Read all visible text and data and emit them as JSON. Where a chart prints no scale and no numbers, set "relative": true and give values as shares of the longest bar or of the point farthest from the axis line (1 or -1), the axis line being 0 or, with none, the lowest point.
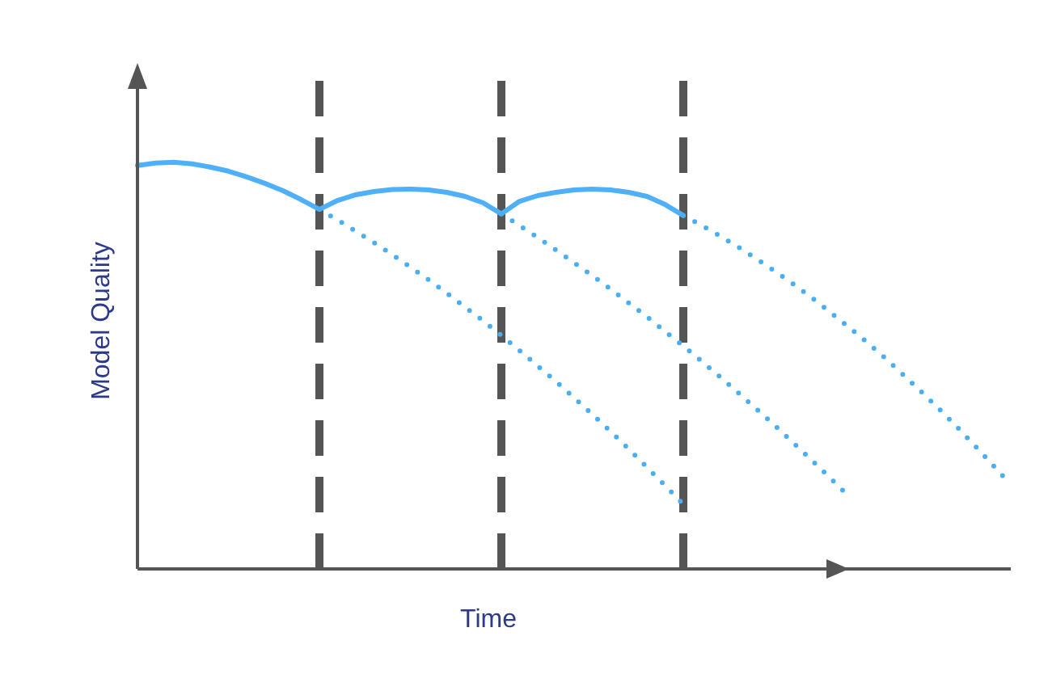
{
  "chart_data": {
    "type": "line",
    "relative": true,
    "xlabel": "Time",
    "ylabel": "Model Quality",
    "grid": "x",
    "legend": false,
    "marker": "none",
    "categories": [
      null,
      null,
      null,
      null,
      null,
      null,
      null,
      null,
      null,
      null,
      null,
      null,
      null,
      null,
      null,
      null,
      null,
      null,
      null,
      null,
      null,
      null,
      null,
      null,
      null,
      null,
      null,
      null,
      null,
      null,
      null,
      null,
      null,
      null,
      null,
      null,
      null,
      null,
      null,
      null,
      null,
      null,
      null,
      null,
      null,
      null,
      null,
      null,
      null
    ],
    "series": [
      {
        "color": "#4fb0f7",
        "line_style": "solid",
        "values": [
          0.992,
          0.998,
          1.0,
          0.996,
          0.988,
          0.978,
          0.964,
          0.948,
          0.93,
          0.908,
          0.884,
          0.906,
          0.92,
          0.928,
          0.933,
          0.934,
          0.932,
          0.926,
          0.916,
          0.9,
          0.873,
          0.904,
          0.918,
          0.926,
          0.932,
          0.934,
          0.932,
          0.926,
          0.916,
          0.896,
          0.869,
          null,
          null,
          null,
          null,
          null,
          null,
          null,
          null,
          null,
          null,
          null,
          null,
          null,
          null,
          null,
          null,
          null,
          null
        ]
      },
      {
        "color": "#4aaef5",
        "line_style": "dotted",
        "values": [
          null,
          null,
          null,
          null,
          null,
          null,
          null,
          null,
          null,
          null,
          0.884,
          0.858,
          0.83,
          0.802,
          0.773,
          0.742,
          0.711,
          0.678,
          0.644,
          0.61,
          0.574,
          0.537,
          0.499,
          0.461,
          0.421,
          0.38,
          0.338,
          0.295,
          0.25,
          0.205,
          0.159,
          null,
          null,
          null,
          null,
          null,
          null,
          null,
          null,
          null,
          null,
          null,
          null,
          null,
          null,
          null,
          null,
          null,
          null
        ]
      },
      {
        "color": "#4aaef5",
        "line_style": "dotted",
        "values": [
          null,
          null,
          null,
          null,
          null,
          null,
          null,
          null,
          null,
          null,
          null,
          null,
          null,
          null,
          null,
          null,
          null,
          null,
          null,
          null,
          0.873,
          0.844,
          0.815,
          0.784,
          0.753,
          0.721,
          0.688,
          0.654,
          0.62,
          0.584,
          0.548,
          0.511,
          0.473,
          0.434,
          0.394,
          0.354,
          0.312,
          0.27,
          0.227,
          0.183,
          null,
          null,
          null,
          null,
          null,
          null,
          null,
          null,
          null
        ]
      },
      {
        "color": "#4aaef5",
        "line_style": "dotted",
        "values": [
          null,
          null,
          null,
          null,
          null,
          null,
          null,
          null,
          null,
          null,
          null,
          null,
          null,
          null,
          null,
          null,
          null,
          null,
          null,
          null,
          null,
          null,
          null,
          null,
          null,
          null,
          null,
          null,
          null,
          null,
          0.869,
          0.845,
          0.819,
          0.792,
          0.763,
          0.733,
          0.702,
          0.669,
          0.634,
          0.598,
          0.561,
          0.522,
          0.481,
          0.439,
          0.396,
          0.351,
          0.304,
          0.256,
          0.207
        ]
      }
    ]
  }
}
